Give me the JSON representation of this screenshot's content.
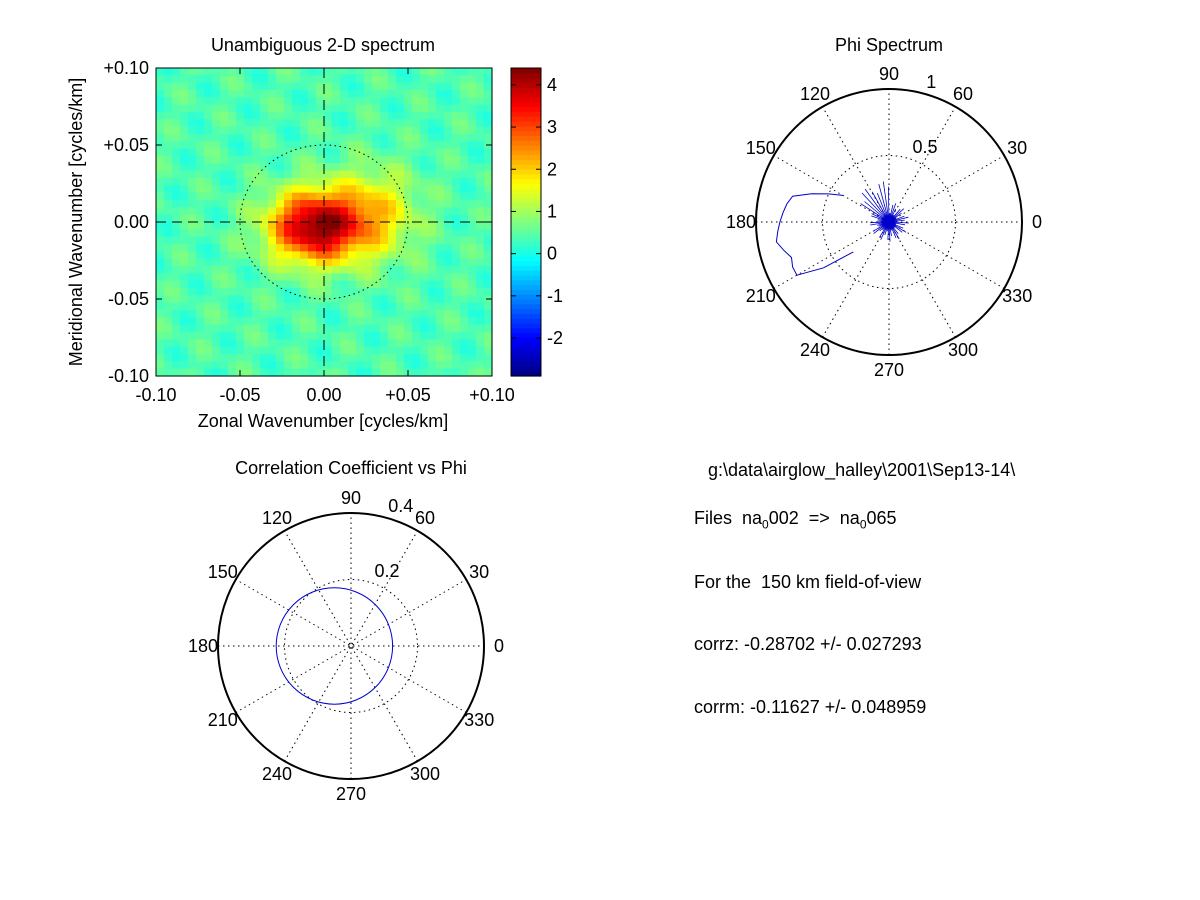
{
  "figure": {
    "spectrum2d": {
      "title": "Unambiguous 2-D spectrum",
      "xlabel": "Zonal Wavenumber [cycles/km]",
      "ylabel": "Meridional Wavenumber [cycles/km]",
      "xticks": [
        "-0.10",
        "-0.05",
        "0.00",
        "+0.05",
        "+0.10"
      ],
      "yticks": [
        "+0.10",
        "+0.05",
        "0.00",
        "-0.05",
        "-0.10"
      ],
      "colorbar_ticks": [
        "4",
        "3",
        "2",
        "1",
        "0",
        "-1",
        "-2"
      ]
    },
    "phi_spectrum": {
      "title": "Phi Spectrum",
      "radial_ticks": [
        "0.5",
        "1"
      ],
      "angle_labels": [
        "0",
        "30",
        "60",
        "90",
        "120",
        "150",
        "180",
        "210",
        "240",
        "270",
        "300",
        "330"
      ]
    },
    "correlation": {
      "title": "Correlation Coefficient vs Phi",
      "radial_ticks": [
        "0.2",
        "0.4"
      ],
      "angle_labels": [
        "0",
        "30",
        "60",
        "90",
        "120",
        "150",
        "180",
        "210",
        "240",
        "270",
        "300",
        "330"
      ]
    }
  },
  "info": {
    "path": "g:\\data\\airglow_halley\\2001\\Sep13-14\\",
    "files_prefix": "Files  na",
    "files_sub1": "0",
    "files_mid": "002  =>  na",
    "files_sub2": "0",
    "files_end": "065",
    "fov": "For the  150 km field-of-view",
    "corrz": "corrz: -0.28702 +/- 0.027293",
    "corrm": "corrm: -0.11627 +/- 0.048959"
  },
  "colors": {
    "line": "#0000cc",
    "axes": "#000000"
  },
  "chart_data": [
    {
      "type": "heatmap",
      "title": "Unambiguous 2-D spectrum",
      "xlabel": "Zonal Wavenumber [cycles/km]",
      "ylabel": "Meridional Wavenumber [cycles/km]",
      "xlim": [
        -0.1,
        0.1
      ],
      "ylim": [
        -0.1,
        0.1
      ],
      "clim": [
        -2.9,
        4.4
      ],
      "colormap": "jet",
      "peak": {
        "x": -0.005,
        "y": -0.003,
        "value": 4.3
      },
      "background_value": 0.4,
      "reference_circle_radius": 0.05
    },
    {
      "type": "line",
      "coordinates": "polar",
      "title": "Phi Spectrum",
      "rlim": [
        0,
        1
      ],
      "theta_deg": [
        150,
        155,
        160,
        165,
        170,
        175,
        180,
        185,
        190,
        195,
        200,
        205,
        210,
        215,
        220
      ],
      "r": [
        0.4,
        0.5,
        0.62,
        0.75,
        0.78,
        0.8,
        0.82,
        0.84,
        0.86,
        0.82,
        0.78,
        0.8,
        0.8,
        0.6,
        0.35
      ]
    },
    {
      "type": "line",
      "coordinates": "polar",
      "title": "Correlation Coefficient vs Phi",
      "rlim": [
        0,
        0.4
      ],
      "circle_center": {
        "x": -0.05,
        "y": 0.0
      },
      "circle_radius": 0.175
    }
  ]
}
